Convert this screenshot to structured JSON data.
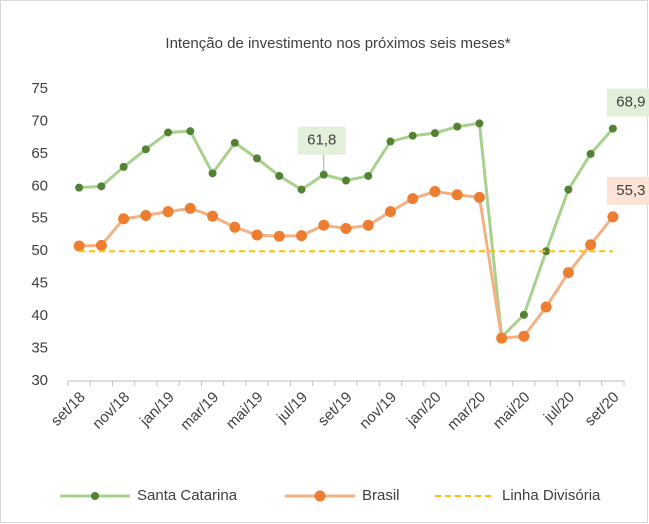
{
  "chart_data": {
    "type": "line",
    "title": "Intenção de investimento nos próximos seis meses*",
    "categories": [
      "set/18",
      null,
      "nov/18",
      null,
      "jan/19",
      null,
      "mar/19",
      null,
      "mai/19",
      null,
      "jul/19",
      null,
      "set/19",
      null,
      "nov/19",
      null,
      "jan/20",
      null,
      "mar/20",
      null,
      "mai/20",
      null,
      "jul/20",
      null,
      "set/20"
    ],
    "series": [
      {
        "name": "Santa Catarina",
        "color": "#a9d18e",
        "marker_color": "#548235",
        "values": [
          59.8,
          60.0,
          63.0,
          65.7,
          68.3,
          68.5,
          62.0,
          66.7,
          64.3,
          61.6,
          59.5,
          61.8,
          60.9,
          61.6,
          66.9,
          67.8,
          68.2,
          69.2,
          69.7,
          36.8,
          40.2,
          50.0,
          59.5,
          65.0,
          68.9
        ],
        "value_labels": [
          null,
          null,
          null,
          null,
          null,
          null,
          null,
          null,
          null,
          null,
          null,
          "61,8",
          null,
          null,
          null,
          null,
          null,
          null,
          null,
          null,
          null,
          null,
          null,
          null,
          "68,9"
        ]
      },
      {
        "name": "Brasil",
        "color": "#f4b183",
        "marker_color": "#ed7d31",
        "values": [
          50.8,
          50.9,
          55.0,
          55.5,
          56.1,
          56.6,
          55.4,
          53.7,
          52.5,
          52.3,
          52.4,
          54.0,
          53.5,
          54.0,
          56.1,
          58.1,
          59.2,
          58.7,
          58.3,
          36.6,
          36.9,
          41.4,
          46.7,
          51.0,
          55.3
        ],
        "value_labels": [
          null,
          null,
          null,
          null,
          null,
          null,
          null,
          null,
          null,
          null,
          null,
          null,
          null,
          null,
          null,
          null,
          null,
          null,
          null,
          null,
          null,
          null,
          null,
          null,
          "55,3"
        ]
      },
      {
        "name": "Linha Divisória",
        "color": "#ffc000",
        "dashed": true,
        "values": [
          50,
          50,
          50,
          50,
          50,
          50,
          50,
          50,
          50,
          50,
          50,
          50,
          50,
          50,
          50,
          50,
          50,
          50,
          50,
          50,
          50,
          50,
          50,
          50,
          50
        ]
      }
    ],
    "ylim": [
      30,
      75
    ],
    "yticks": [
      30,
      35,
      40,
      45,
      50,
      55,
      60,
      65,
      70,
      75
    ],
    "grid": false,
    "legend": "bottom"
  }
}
